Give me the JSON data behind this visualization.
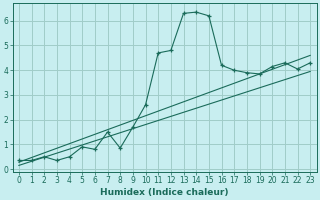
{
  "xlabel": "Humidex (Indice chaleur)",
  "bg_color": "#c8eef0",
  "grid_color": "#a0ccc8",
  "line_color": "#1a6b5a",
  "xlim": [
    -0.5,
    23.5
  ],
  "ylim": [
    -0.1,
    6.7
  ],
  "xticks": [
    0,
    1,
    2,
    3,
    4,
    5,
    6,
    7,
    8,
    9,
    10,
    11,
    12,
    13,
    14,
    15,
    16,
    17,
    18,
    19,
    20,
    21,
    22,
    23
  ],
  "yticks": [
    0,
    1,
    2,
    3,
    4,
    5,
    6
  ],
  "main_x": [
    0,
    1,
    2,
    3,
    4,
    5,
    6,
    7,
    8,
    9,
    10,
    11,
    12,
    13,
    14,
    15,
    16,
    17,
    18,
    19,
    20,
    21,
    22,
    23
  ],
  "main_y": [
    0.35,
    0.35,
    0.5,
    0.35,
    0.5,
    0.9,
    0.8,
    1.5,
    0.85,
    1.7,
    2.6,
    4.7,
    4.8,
    6.3,
    6.35,
    6.2,
    4.2,
    4.0,
    3.9,
    3.85,
    4.15,
    4.3,
    4.05,
    4.3
  ],
  "line1_x": [
    0,
    23
  ],
  "line1_y": [
    0.28,
    4.6
  ],
  "line2_x": [
    0,
    23
  ],
  "line2_y": [
    0.15,
    3.95
  ]
}
